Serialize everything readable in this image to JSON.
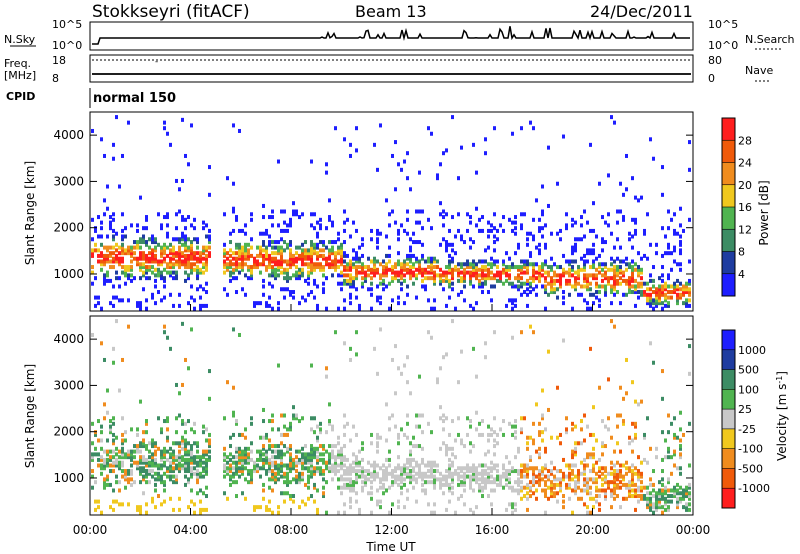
{
  "header": {
    "station": "Stokkseyri (fitACF)",
    "beam": "Beam 13",
    "date": "24/Dec/2011"
  },
  "top_panels": {
    "nsky_label": "N.Sky",
    "nsky_ticks": [
      "10^5",
      "10^0"
    ],
    "nsearch_label": "N.Search",
    "nsearch_ticks": [
      "10^5",
      "10^0"
    ],
    "freq_label": "Freq.",
    "freq_unit": "[MHz]",
    "freq_ticks": [
      "18",
      "8"
    ],
    "nave_label": "Nave",
    "nave_ticks": [
      "80",
      "0"
    ],
    "cpid_label": "CPID",
    "cpid_value": "normal 150"
  },
  "colors": {
    "power": [
      "#1e1eff",
      "#1e3ca0",
      "#3c8c64",
      "#50b450",
      "#f0c81e",
      "#f08c1e",
      "#f05a0a",
      "#ff1e1e"
    ],
    "velocity": [
      "#ff1e1e",
      "#f05a0a",
      "#f08c1e",
      "#f0c81e",
      "#c8c8c8",
      "#50b450",
      "#3c8c64",
      "#1e3ca0",
      "#1e1eff"
    ]
  },
  "chart_data": [
    {
      "type": "heatmap",
      "name": "power",
      "xlabel": "",
      "ylabel": "Slant Range [km]",
      "ylim": [
        200,
        4500
      ],
      "yticks": [
        "1000",
        "2000",
        "3000",
        "4000"
      ],
      "colorbar_label": "Power [dB]",
      "colorbar_ticks": [
        "4",
        "8",
        "12",
        "16",
        "20",
        "24",
        "28"
      ]
    },
    {
      "type": "heatmap",
      "name": "velocity",
      "xlabel": "Time UT",
      "ylabel": "Slant Range [km]",
      "ylim": [
        200,
        4500
      ],
      "yticks": [
        "1000",
        "2000",
        "3000",
        "4000"
      ],
      "xticks": [
        "00:00",
        "04:00",
        "08:00",
        "12:00",
        "16:00",
        "20:00",
        "00:00"
      ],
      "colorbar_label": "Velocity [m s",
      "colorbar_label_sup": "-1",
      "colorbar_label_end": "]",
      "colorbar_ticks": [
        "1000",
        "500",
        "100",
        "25",
        "-25",
        "-100",
        "-500",
        "-1000"
      ]
    }
  ]
}
